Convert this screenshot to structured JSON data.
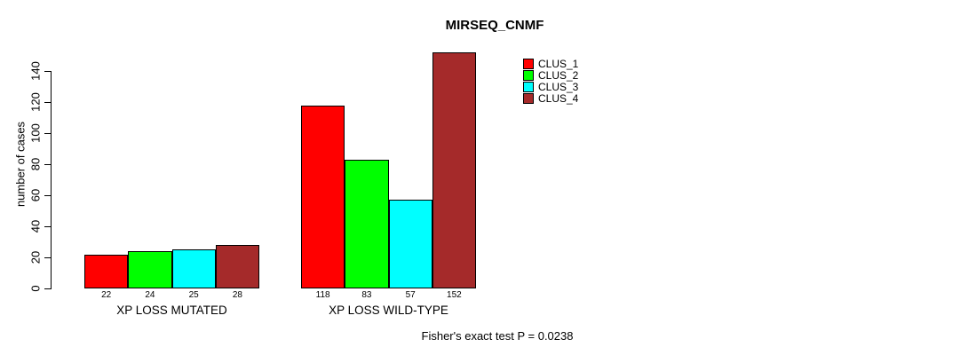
{
  "title": "MIRSEQ_CNMF",
  "colors": {
    "background": "#FFFFFF",
    "axis": "#000000",
    "text": "#000000",
    "clus_1": "#FF0000",
    "clus_2": "#00FF00",
    "clus_3": "#00FFFF",
    "clus_4": "#A52A2A"
  },
  "chart_data": {
    "type": "bar",
    "title": "MIRSEQ_CNMF",
    "xlabel": "",
    "ylabel": "number of cases",
    "ylim": [
      0,
      140
    ],
    "yticks": [
      0,
      20,
      40,
      60,
      80,
      100,
      120,
      140
    ],
    "grid": false,
    "legend_position": "top-right",
    "bar_value_labels_shown": true,
    "categories": [
      "XP LOSS MUTATED",
      "XP LOSS WILD-TYPE"
    ],
    "series": [
      {
        "name": "CLUS_1",
        "color": "#FF0000",
        "values": [
          22,
          118
        ]
      },
      {
        "name": "CLUS_2",
        "color": "#00FF00",
        "values": [
          24,
          83
        ]
      },
      {
        "name": "CLUS_3",
        "color": "#00FFFF",
        "values": [
          25,
          57
        ]
      },
      {
        "name": "CLUS_4",
        "color": "#A52A2A",
        "values": [
          28,
          152
        ]
      }
    ],
    "annotation": "Fisher's exact test P = 0.0238"
  }
}
